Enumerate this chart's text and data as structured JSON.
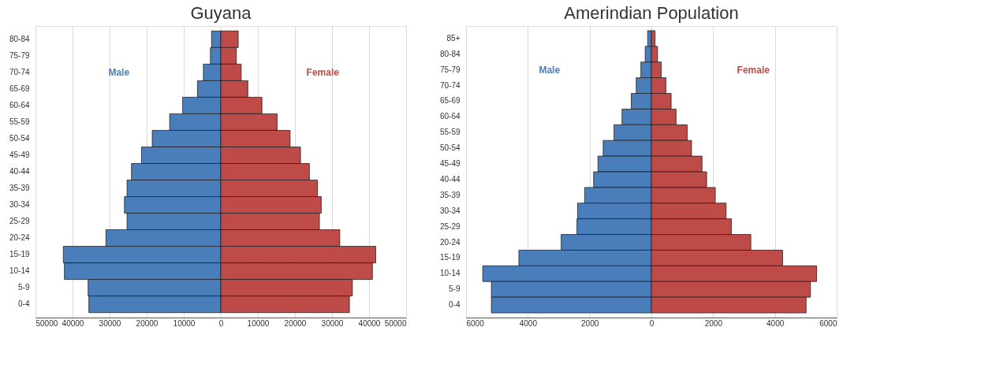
{
  "chart_data": [
    {
      "type": "bar",
      "title": "Guyana",
      "orientation": "horizontal",
      "stacked": true,
      "grid": "x",
      "legend": false,
      "categories": [
        "80-84",
        "75-79",
        "70-74",
        "65-69",
        "60-64",
        "55-59",
        "50-54",
        "45-49",
        "40-44",
        "35-39",
        "30-34",
        "25-29",
        "20-24",
        "15-19",
        "10-14",
        "5-9",
        "0-4"
      ],
      "series": [
        {
          "name": "Male",
          "color": "#4a7ebb",
          "values": [
            -2500,
            -2800,
            -4700,
            -6300,
            -10300,
            -13800,
            -18500,
            -21400,
            -24100,
            -25300,
            -26000,
            -25300,
            -31000,
            -42500,
            -42200,
            -35800,
            -35600
          ]
        },
        {
          "name": "Female",
          "color": "#be4b48",
          "values": [
            4700,
            4200,
            5500,
            7300,
            11100,
            15200,
            18700,
            21500,
            23900,
            26100,
            27100,
            26600,
            32100,
            41800,
            40900,
            35500,
            34700
          ]
        }
      ],
      "xlim": [
        -50000,
        50000
      ],
      "xticks": [
        {
          "value": -50000,
          "label": "50000"
        },
        {
          "value": -40000,
          "label": "40000"
        },
        {
          "value": -30000,
          "label": "30000"
        },
        {
          "value": -20000,
          "label": "20000"
        },
        {
          "value": -10000,
          "label": "10000"
        },
        0,
        10000,
        20000,
        30000,
        40000,
        50000
      ]
    },
    {
      "type": "bar",
      "title": "Amerindian Population",
      "orientation": "horizontal",
      "stacked": true,
      "grid": "x",
      "legend": false,
      "categories": [
        "85+",
        "80-84",
        "75-79",
        "70-74",
        "65-69",
        "60-64",
        "55-59",
        "50-54",
        "45-49",
        "40-44",
        "35-39",
        "30-34",
        "25-29",
        "20-24",
        "15-19",
        "10-14",
        "5-9",
        "0-4"
      ],
      "series": [
        {
          "name": "Male",
          "color": "#4a7ebb",
          "values": [
            -120,
            -200,
            -340,
            -490,
            -650,
            -950,
            -1210,
            -1560,
            -1730,
            -1870,
            -2160,
            -2390,
            -2410,
            -2920,
            -4290,
            -5460,
            -5180,
            -5180
          ]
        },
        {
          "name": "Female",
          "color": "#be4b48",
          "values": [
            120,
            200,
            320,
            470,
            640,
            800,
            1160,
            1300,
            1640,
            1790,
            2070,
            2420,
            2590,
            3220,
            4250,
            5350,
            5150,
            5010
          ]
        }
      ],
      "xlim": [
        -6000,
        6000
      ],
      "xticks": [
        {
          "value": -6000,
          "label": "6000"
        },
        {
          "value": -4000,
          "label": "4000"
        },
        {
          "value": -2000,
          "label": "2000"
        },
        0,
        2000,
        4000,
        6000
      ]
    }
  ]
}
